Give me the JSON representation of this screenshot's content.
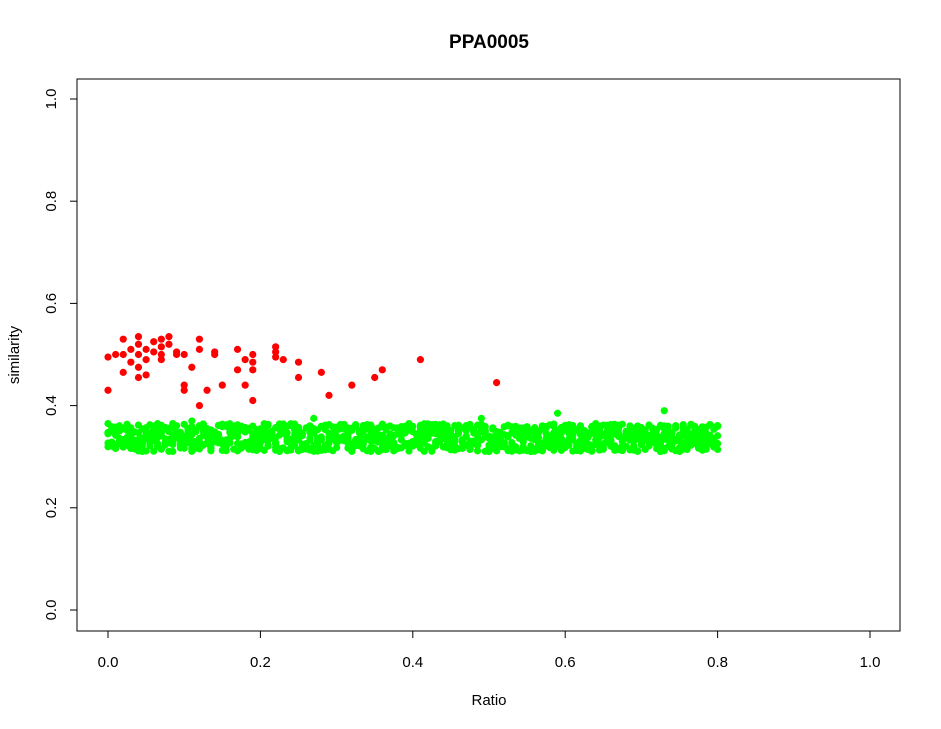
{
  "chart_data": {
    "type": "scatter",
    "title": "PPA0005",
    "xlabel": "Ratio",
    "ylabel": "similarity",
    "xlim": [
      0.0,
      1.0
    ],
    "ylim": [
      0.0,
      1.0
    ],
    "x_ticks": [
      "0.0",
      "0.2",
      "0.4",
      "0.6",
      "0.8",
      "1.0"
    ],
    "y_ticks": [
      "0.0",
      "0.2",
      "0.4",
      "0.6",
      "0.8",
      "1.0"
    ],
    "grid": false,
    "legend": "none",
    "series": [
      {
        "color": "#ff0000",
        "points": [
          [
            0.0,
            0.43
          ],
          [
            0.0,
            0.495
          ],
          [
            0.01,
            0.5
          ],
          [
            0.02,
            0.465
          ],
          [
            0.02,
            0.5
          ],
          [
            0.02,
            0.53
          ],
          [
            0.03,
            0.485
          ],
          [
            0.03,
            0.51
          ],
          [
            0.04,
            0.455
          ],
          [
            0.04,
            0.475
          ],
          [
            0.04,
            0.5
          ],
          [
            0.04,
            0.52
          ],
          [
            0.04,
            0.535
          ],
          [
            0.05,
            0.46
          ],
          [
            0.05,
            0.49
          ],
          [
            0.05,
            0.51
          ],
          [
            0.06,
            0.505
          ],
          [
            0.06,
            0.525
          ],
          [
            0.07,
            0.49
          ],
          [
            0.07,
            0.5
          ],
          [
            0.07,
            0.515
          ],
          [
            0.07,
            0.53
          ],
          [
            0.08,
            0.52
          ],
          [
            0.08,
            0.535
          ],
          [
            0.09,
            0.5
          ],
          [
            0.09,
            0.505
          ],
          [
            0.1,
            0.43
          ],
          [
            0.1,
            0.44
          ],
          [
            0.1,
            0.5
          ],
          [
            0.11,
            0.475
          ],
          [
            0.12,
            0.4
          ],
          [
            0.12,
            0.51
          ],
          [
            0.12,
            0.53
          ],
          [
            0.13,
            0.43
          ],
          [
            0.14,
            0.5
          ],
          [
            0.14,
            0.505
          ],
          [
            0.15,
            0.44
          ],
          [
            0.17,
            0.47
          ],
          [
            0.17,
            0.51
          ],
          [
            0.18,
            0.44
          ],
          [
            0.18,
            0.49
          ],
          [
            0.19,
            0.41
          ],
          [
            0.19,
            0.47
          ],
          [
            0.19,
            0.485
          ],
          [
            0.19,
            0.5
          ],
          [
            0.22,
            0.495
          ],
          [
            0.22,
            0.505
          ],
          [
            0.22,
            0.515
          ],
          [
            0.23,
            0.49
          ],
          [
            0.25,
            0.455
          ],
          [
            0.25,
            0.485
          ],
          [
            0.28,
            0.465
          ],
          [
            0.29,
            0.42
          ],
          [
            0.32,
            0.44
          ],
          [
            0.35,
            0.455
          ],
          [
            0.36,
            0.47
          ],
          [
            0.41,
            0.49
          ],
          [
            0.51,
            0.445
          ]
        ]
      },
      {
        "color": "#00ff00",
        "band": {
          "x_start": 0.0,
          "x_end": 0.8,
          "x_step": 0.005,
          "y_min": 0.3,
          "y_max": 0.375,
          "points_per_x": 7
        },
        "points": [
          [
            0.11,
            0.37
          ],
          [
            0.27,
            0.375
          ],
          [
            0.49,
            0.375
          ],
          [
            0.59,
            0.385
          ],
          [
            0.73,
            0.39
          ]
        ]
      }
    ]
  }
}
